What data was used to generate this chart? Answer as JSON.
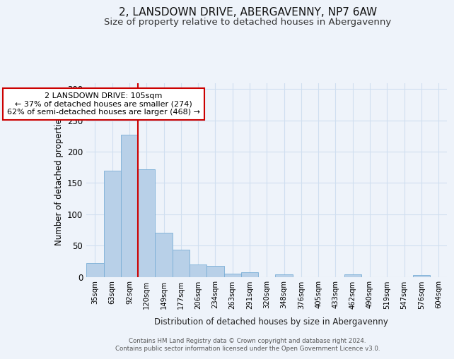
{
  "title": "2, LANSDOWN DRIVE, ABERGAVENNY, NP7 6AW",
  "subtitle": "Size of property relative to detached houses in Abergavenny",
  "xlabel": "Distribution of detached houses by size in Abergavenny",
  "ylabel": "Number of detached properties",
  "categories": [
    "35sqm",
    "63sqm",
    "92sqm",
    "120sqm",
    "149sqm",
    "177sqm",
    "206sqm",
    "234sqm",
    "263sqm",
    "291sqm",
    "320sqm",
    "348sqm",
    "376sqm",
    "405sqm",
    "433sqm",
    "462sqm",
    "490sqm",
    "519sqm",
    "547sqm",
    "576sqm",
    "604sqm"
  ],
  "values": [
    22,
    170,
    227,
    172,
    71,
    43,
    20,
    18,
    5,
    7,
    0,
    4,
    0,
    0,
    0,
    4,
    0,
    0,
    0,
    3,
    0
  ],
  "bar_color": "#b8d0e8",
  "bar_edge_color": "#7aaed6",
  "grid_color": "#d0dff0",
  "vline_x": 2.5,
  "vline_color": "#cc0000",
  "annotation_text": "2 LANSDOWN DRIVE: 105sqm\n← 37% of detached houses are smaller (274)\n62% of semi-detached houses are larger (468) →",
  "annotation_box_color": "#ffffff",
  "annotation_box_edgecolor": "#cc0000",
  "footnote1": "Contains HM Land Registry data © Crown copyright and database right 2024.",
  "footnote2": "Contains public sector information licensed under the Open Government Licence v3.0.",
  "ylim": [
    0,
    310
  ],
  "yticks": [
    0,
    50,
    100,
    150,
    200,
    250,
    300
  ],
  "bg_color": "#eef3fa",
  "title_fontsize": 11,
  "subtitle_fontsize": 9.5
}
